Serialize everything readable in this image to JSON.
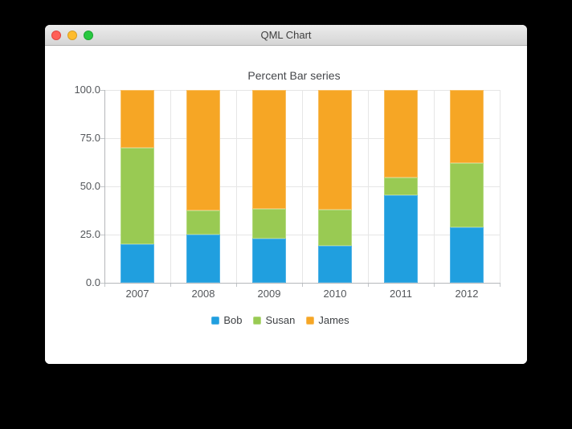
{
  "window": {
    "title": "QML Chart"
  },
  "chart_data": {
    "type": "bar",
    "variant": "percent-stacked",
    "title": "Percent Bar series",
    "categories": [
      "2007",
      "2008",
      "2009",
      "2010",
      "2011",
      "2012"
    ],
    "series": [
      {
        "name": "Bob",
        "color": "#209fdf",
        "border_color": "#4fb2e6",
        "values": [
          20,
          25,
          23.1,
          19,
          45.5,
          28.6
        ]
      },
      {
        "name": "Susan",
        "color": "#99ca53",
        "border_color": "#b4da80",
        "values": [
          50,
          12.5,
          15.4,
          19,
          9.1,
          33.3
        ]
      },
      {
        "name": "James",
        "color": "#f6a625",
        "border_color": "#f8bf62",
        "values": [
          30,
          62.5,
          61.5,
          62,
          45.4,
          38.1
        ]
      }
    ],
    "ylim": [
      0,
      100
    ],
    "y_tick_labels": [
      "100.0",
      "75.0",
      "50.0",
      "25.0",
      "0.0"
    ],
    "grid": true,
    "legend_position": "bottom"
  }
}
